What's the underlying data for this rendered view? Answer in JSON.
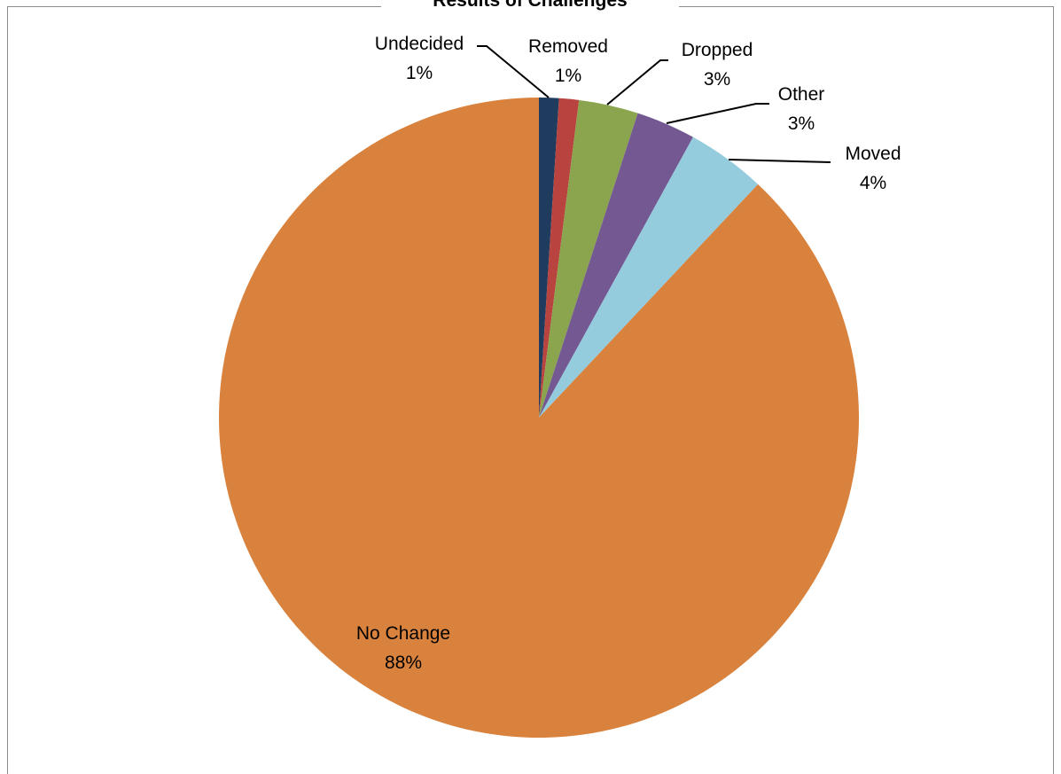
{
  "chart_data": {
    "type": "pie",
    "title": "Results of Challenges",
    "slices": [
      {
        "name": "Undecided",
        "value": 1,
        "percent_label": "1%",
        "color": "#1f3b5e"
      },
      {
        "name": "Removed",
        "value": 1,
        "percent_label": "1%",
        "color": "#b8433f"
      },
      {
        "name": "Dropped",
        "value": 3,
        "percent_label": "3%",
        "color": "#8aa54e"
      },
      {
        "name": "Other",
        "value": 3,
        "percent_label": "3%",
        "color": "#735892"
      },
      {
        "name": "Moved",
        "value": 4,
        "percent_label": "4%",
        "color": "#94cbdd"
      },
      {
        "name": "No Change",
        "value": 88,
        "percent_label": "88%",
        "color": "#d9823d"
      }
    ],
    "start_angle": "12 o'clock",
    "direction": "clockwise",
    "legend": "none"
  }
}
